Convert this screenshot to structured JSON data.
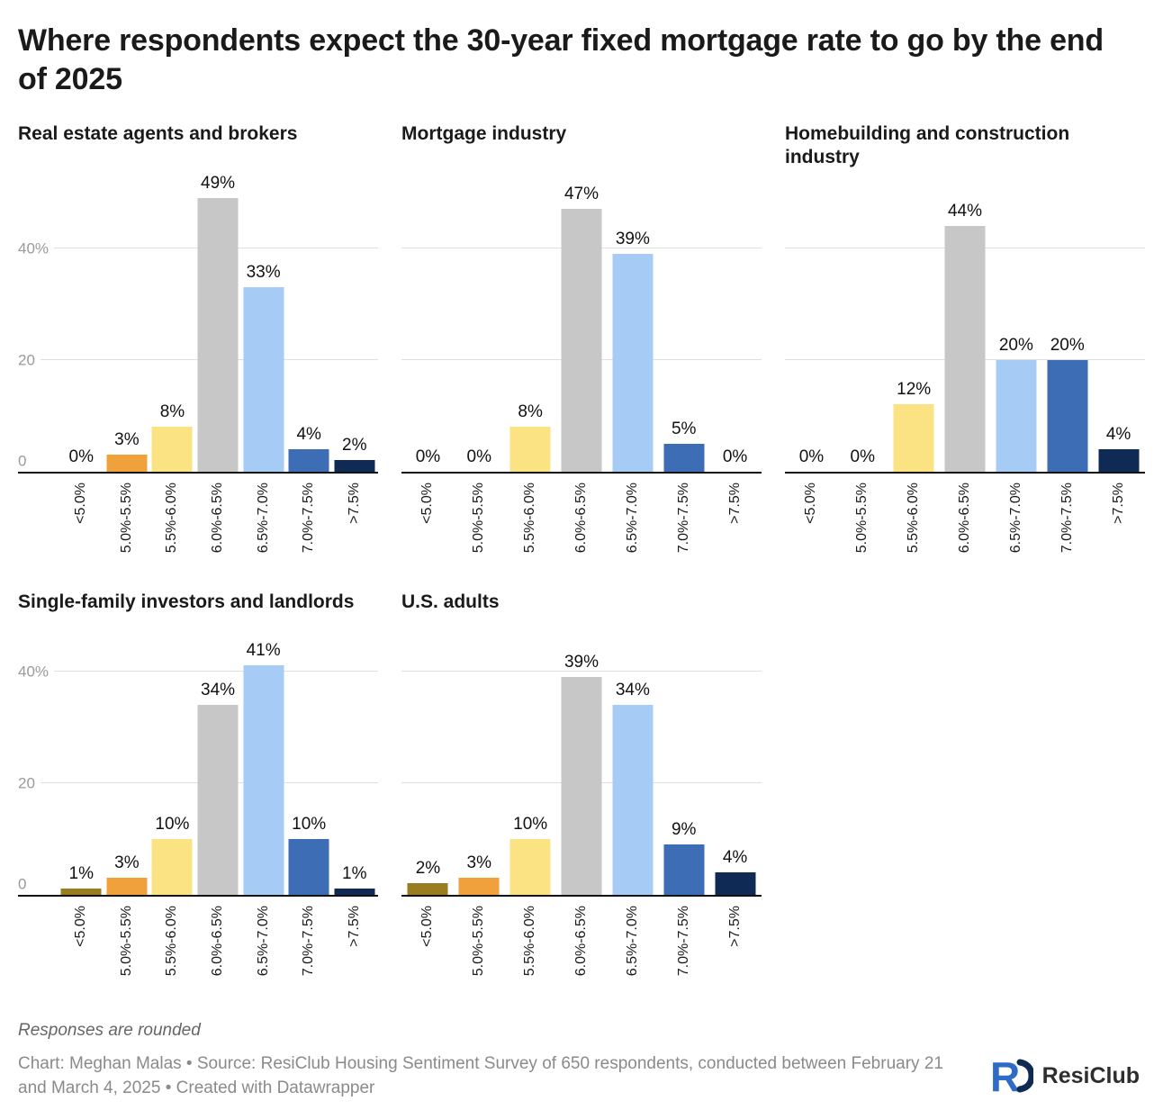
{
  "title": "Where respondents expect the 30-year fixed mortgage rate to go by the end of 2025",
  "footer": {
    "note": "Responses are rounded",
    "credit": "Chart: Meghan Malas • Source: ResiClub Housing Sentiment Survey of 650 respondents, conducted between February 21 and March 4, 2025 • Created with Datawrapper",
    "logo_text": "ResiClub"
  },
  "chart_data": {
    "type": "bar",
    "small_multiples": true,
    "title": "Where respondents expect the 30-year fixed mortgage rate to go by the end of 2025",
    "xlabel": "",
    "ylabel": "",
    "ylim": [
      0,
      53
    ],
    "grid": true,
    "value_labels": true,
    "categories": [
      "<5.0%",
      "5.0%-5.5%",
      "5.5%-6.0%",
      "6.0%-6.5%",
      "6.5%-7.0%",
      "7.0%-7.5%",
      ">7.5%"
    ],
    "bar_colors": [
      "#9a7d20",
      "#f0a13c",
      "#fbe283",
      "#c7c7c7",
      "#a6cbf5",
      "#3d6db5",
      "#0f2b55"
    ],
    "yticks": [
      {
        "value": 0,
        "label": "0"
      },
      {
        "value": 20,
        "label": "20"
      },
      {
        "value": 40,
        "label": "40%"
      }
    ],
    "panels": [
      {
        "title": "Real estate agents and brokers",
        "values": [
          0,
          3,
          8,
          49,
          33,
          4,
          2
        ],
        "labels": [
          "0%",
          "3%",
          "8%",
          "49%",
          "33%",
          "4%",
          "2%"
        ]
      },
      {
        "title": "Mortgage industry",
        "values": [
          0,
          0,
          8,
          47,
          39,
          5,
          0
        ],
        "labels": [
          "0%",
          "0%",
          "8%",
          "47%",
          "39%",
          "5%",
          "0%"
        ]
      },
      {
        "title": "Homebuilding and construction industry",
        "values": [
          0,
          0,
          12,
          44,
          20,
          20,
          4
        ],
        "labels": [
          "0%",
          "0%",
          "12%",
          "44%",
          "20%",
          "20%",
          "4%"
        ]
      },
      {
        "title": "Single-family investors and landlords",
        "values": [
          1,
          3,
          10,
          34,
          41,
          10,
          1
        ],
        "labels": [
          "1%",
          "3%",
          "10%",
          "34%",
          "41%",
          "10%",
          "1%"
        ]
      },
      {
        "title": "U.S. adults",
        "values": [
          2,
          3,
          10,
          39,
          34,
          9,
          4
        ],
        "labels": [
          "2%",
          "3%",
          "10%",
          "39%",
          "34%",
          "9%",
          "4%"
        ]
      }
    ]
  }
}
